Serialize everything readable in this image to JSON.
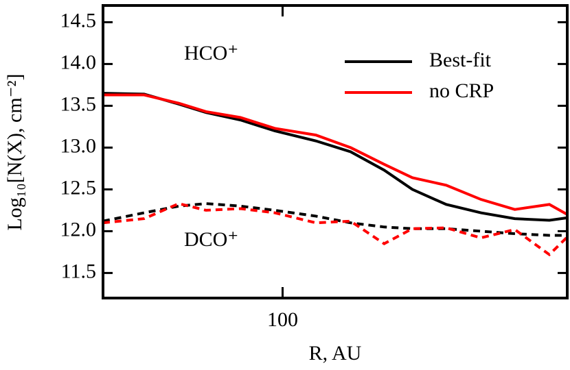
{
  "chart_data": {
    "type": "line",
    "xlabel": "R, AU",
    "ylabel": "Log₁₀[N(X), cm⁻²]",
    "x": [
      50,
      58.6,
      67,
      74.4,
      85,
      97,
      113.7,
      130,
      148,
      165,
      188,
      215,
      245,
      280,
      300
    ],
    "xlim": [
      50,
      300
    ],
    "xlog": true,
    "xticks": [
      100
    ],
    "ylim": [
      11.2,
      14.7
    ],
    "yticks": [
      {
        "value": 11.5,
        "label": "11.5"
      },
      {
        "value": 12,
        "label": "12.0"
      },
      12.5,
      {
        "value": 13,
        "label": "13.0"
      },
      13.5,
      {
        "value": 14,
        "label": "14.0"
      },
      14.5
    ],
    "legend": "upper right",
    "annotations": [
      "HCO⁺",
      "DCO⁺"
    ],
    "series": [
      {
        "name": "Best-fit",
        "color": "#000000",
        "linestyle": "solid",
        "values": [
          13.65,
          13.64,
          13.52,
          13.42,
          13.33,
          13.2,
          13.08,
          12.95,
          12.73,
          12.5,
          12.32,
          12.22,
          12.15,
          12.13,
          12.16
        ]
      },
      {
        "name": "no CRP",
        "color": "#ff0000",
        "linestyle": "solid",
        "values": [
          13.63,
          13.63,
          13.53,
          13.43,
          13.36,
          13.23,
          13.15,
          13.0,
          12.8,
          12.64,
          12.55,
          12.38,
          12.26,
          12.32,
          12.2
        ]
      },
      {
        "color": "#000000",
        "linestyle": "dashed",
        "values": [
          12.12,
          12.22,
          12.3,
          12.33,
          12.3,
          12.25,
          12.18,
          12.1,
          12.05,
          12.03,
          12.03,
          12.0,
          11.97,
          11.95,
          11.95
        ]
      },
      {
        "color": "#ff0000",
        "linestyle": "dashed",
        "values": [
          12.1,
          12.15,
          12.33,
          12.25,
          12.27,
          12.22,
          12.1,
          12.12,
          11.85,
          12.03,
          12.04,
          11.92,
          12.02,
          11.72,
          11.93
        ]
      }
    ]
  }
}
